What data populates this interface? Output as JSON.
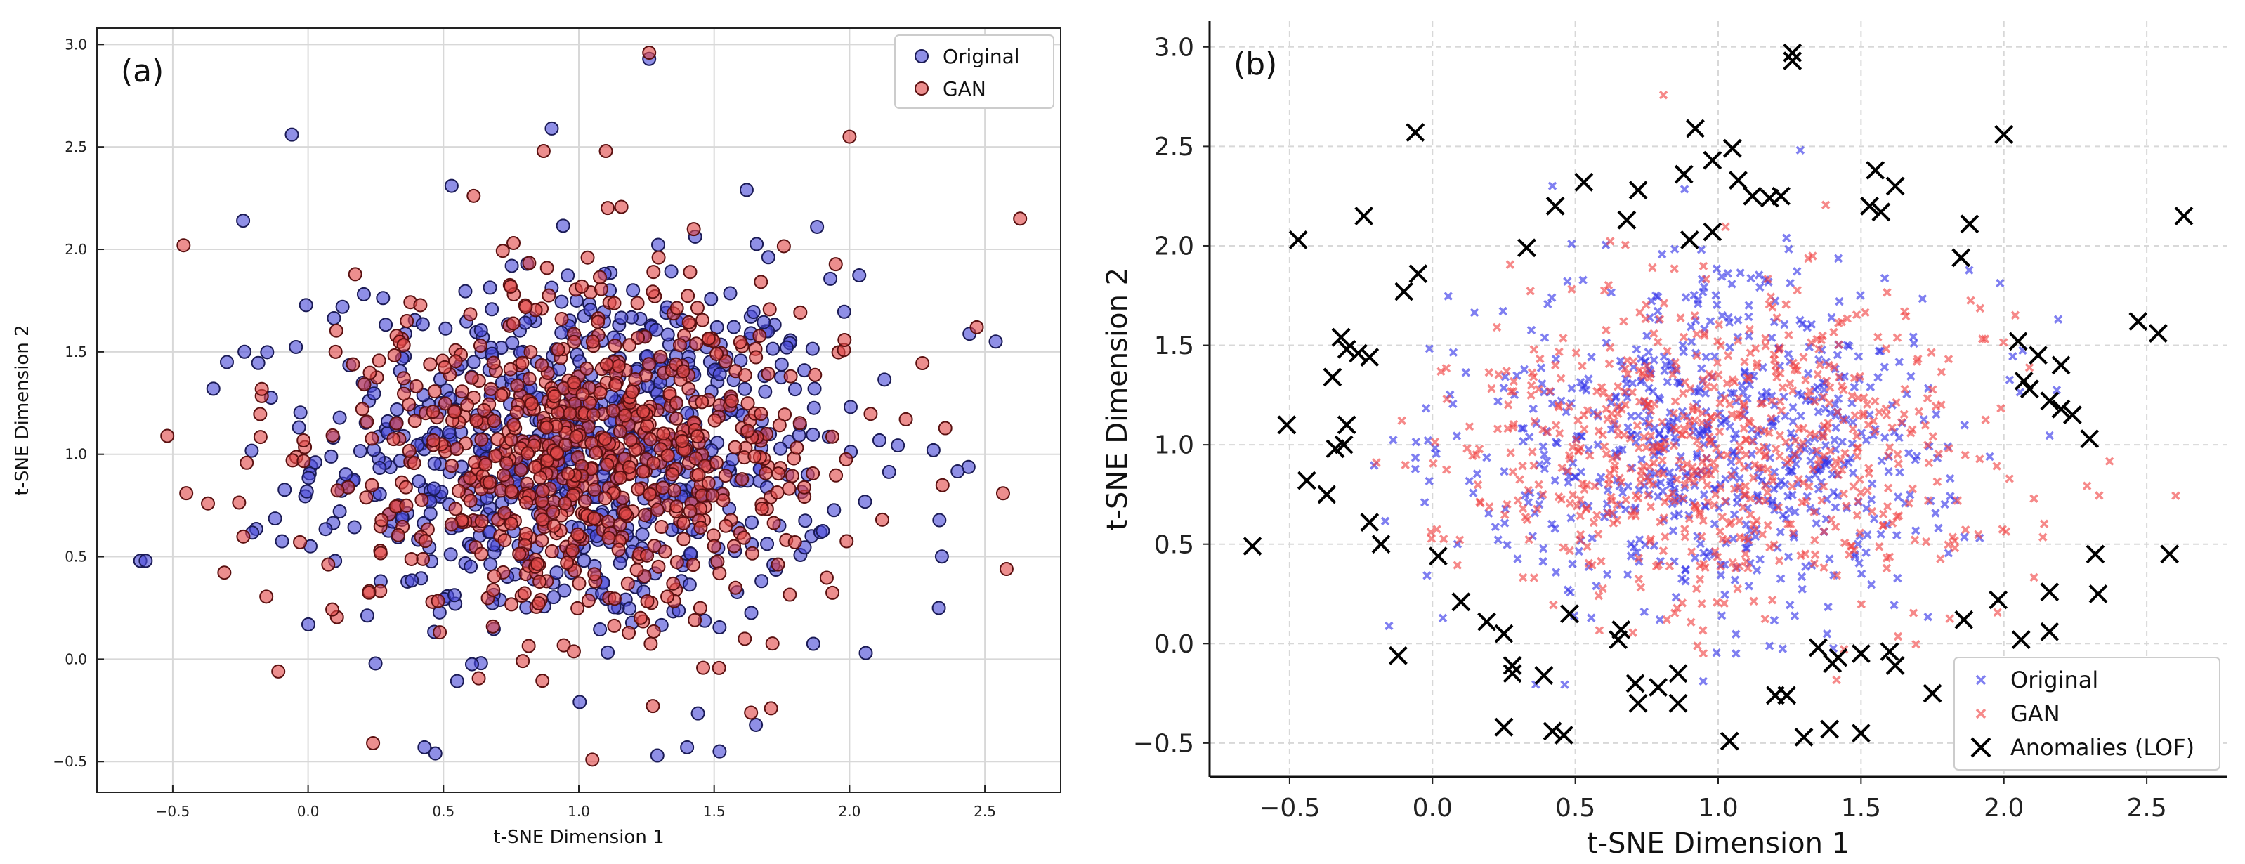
{
  "figure": {
    "panels": [
      "a",
      "b"
    ]
  },
  "chart_data": [
    {
      "id": "a",
      "type": "scatter",
      "panel_label": "(a)",
      "xlabel": "t-SNE Dimension 1",
      "ylabel": "t-SNE Dimension 2",
      "xlim": [
        -0.78,
        2.78
      ],
      "ylim": [
        -0.65,
        3.08
      ],
      "xticks": [
        -0.5,
        0.0,
        0.5,
        1.0,
        1.5,
        2.0,
        2.5
      ],
      "yticks": [
        -0.5,
        0.0,
        0.5,
        1.0,
        1.5,
        2.0,
        2.5,
        3.0
      ],
      "tick_labels_x": [
        "−0.5",
        "0.0",
        "0.5",
        "1.0",
        "1.5",
        "2.0",
        "2.5"
      ],
      "tick_labels_y": [
        "−0.5",
        "0.0",
        "0.5",
        "1.0",
        "1.5",
        "2.0",
        "2.5",
        "3.0"
      ],
      "grid": true,
      "legend": {
        "position": "top-right",
        "entries": [
          "Original",
          "GAN"
        ]
      },
      "series": [
        {
          "name": "Original",
          "marker": "circle",
          "color": "#4a4ad6",
          "edge": "#1a1a55",
          "points": [
            [
              -0.62,
              0.48
            ],
            [
              -0.06,
              2.56
            ],
            [
              0.9,
              2.59
            ],
            [
              1.26,
              2.93
            ],
            [
              -0.24,
              2.14
            ],
            [
              0.53,
              2.31
            ],
            [
              1.62,
              2.29
            ],
            [
              1.88,
              2.11
            ],
            [
              2.54,
              1.55
            ],
            [
              2.31,
              1.02
            ],
            [
              2.33,
              0.25
            ],
            [
              2.06,
              0.03
            ],
            [
              1.52,
              -0.45
            ],
            [
              1.29,
              -0.47
            ],
            [
              0.47,
              -0.46
            ],
            [
              0.43,
              -0.43
            ],
            [
              1.4,
              -0.43
            ],
            [
              -0.6,
              0.48
            ],
            [
              -0.35,
              1.32
            ],
            [
              -0.3,
              1.45
            ]
          ],
          "cluster": {
            "count": 720,
            "center": [
              1.0,
              1.0
            ],
            "spread": [
              0.48,
              0.44
            ]
          }
        },
        {
          "name": "GAN",
          "marker": "circle",
          "color": "#e04848",
          "edge": "#5a1010",
          "points": [
            [
              1.26,
              2.96
            ],
            [
              -0.46,
              2.02
            ],
            [
              2.0,
              2.55
            ],
            [
              2.63,
              2.15
            ],
            [
              2.47,
              1.62
            ],
            [
              2.58,
              0.44
            ],
            [
              1.71,
              -0.24
            ],
            [
              1.05,
              -0.49
            ],
            [
              0.24,
              -0.41
            ],
            [
              -0.11,
              -0.06
            ],
            [
              -0.52,
              1.09
            ],
            [
              -0.45,
              0.81
            ],
            [
              -0.37,
              0.76
            ],
            [
              1.1,
              2.48
            ],
            [
              0.87,
              2.48
            ]
          ],
          "cluster": {
            "count": 720,
            "center": [
              1.03,
              0.98
            ],
            "spread": [
              0.45,
              0.42
            ]
          }
        }
      ]
    },
    {
      "id": "b",
      "type": "scatter",
      "panel_label": "(b)",
      "xlabel": "t-SNE Dimension 1",
      "ylabel": "t-SNE Dimension 2",
      "xlim": [
        -0.78,
        2.78
      ],
      "ylim": [
        -0.67,
        3.13
      ],
      "xticks": [
        -0.5,
        0.0,
        0.5,
        1.0,
        1.5,
        2.0,
        2.5
      ],
      "yticks": [
        -0.5,
        0.0,
        0.5,
        1.0,
        1.5,
        2.0,
        2.5,
        3.0
      ],
      "tick_labels_x": [
        "−0.5",
        "0.0",
        "0.5",
        "1.0",
        "1.5",
        "2.0",
        "2.5"
      ],
      "tick_labels_y": [
        "−0.5",
        "0.0",
        "0.5",
        "1.0",
        "1.5",
        "2.0",
        "2.5",
        "3.0"
      ],
      "grid": true,
      "grid_style": "dashed",
      "legend": {
        "position": "bottom-right",
        "entries": [
          "Original",
          "GAN",
          "Anomalies (LOF)"
        ]
      },
      "series": [
        {
          "name": "Original",
          "marker": "x-small",
          "color": "#3030e8",
          "cluster": {
            "count": 700,
            "center": [
              1.0,
              1.0
            ],
            "spread": [
              0.45,
              0.42
            ]
          }
        },
        {
          "name": "GAN",
          "marker": "x-small",
          "color": "#f04040",
          "cluster": {
            "count": 700,
            "center": [
              1.0,
              0.98
            ],
            "spread": [
              0.45,
              0.42
            ]
          }
        },
        {
          "name": "Anomalies (LOF)",
          "marker": "x-large",
          "color": "#000000",
          "points": [
            [
              1.26,
              2.97
            ],
            [
              1.26,
              2.93
            ],
            [
              -0.06,
              2.57
            ],
            [
              0.92,
              2.59
            ],
            [
              2.0,
              2.56
            ],
            [
              1.05,
              2.49
            ],
            [
              0.98,
              2.43
            ],
            [
              0.53,
              2.32
            ],
            [
              1.55,
              2.38
            ],
            [
              1.62,
              2.3
            ],
            [
              -0.24,
              2.15
            ],
            [
              0.43,
              2.2
            ],
            [
              0.68,
              2.13
            ],
            [
              0.88,
              2.36
            ],
            [
              0.72,
              2.28
            ],
            [
              1.07,
              2.33
            ],
            [
              1.12,
              2.25
            ],
            [
              1.18,
              2.24
            ],
            [
              1.22,
              2.25
            ],
            [
              1.53,
              2.2
            ],
            [
              1.57,
              2.17
            ],
            [
              1.88,
              2.11
            ],
            [
              -0.47,
              2.03
            ],
            [
              0.9,
              2.03
            ],
            [
              0.98,
              2.07
            ],
            [
              1.85,
              1.94
            ],
            [
              0.33,
              1.99
            ],
            [
              -0.05,
              1.86
            ],
            [
              -0.1,
              1.77
            ],
            [
              2.63,
              2.15
            ],
            [
              2.47,
              1.62
            ],
            [
              2.54,
              1.56
            ],
            [
              -0.32,
              1.54
            ],
            [
              -0.3,
              1.48
            ],
            [
              -0.35,
              1.34
            ],
            [
              -0.26,
              1.46
            ],
            [
              -0.22,
              1.44
            ],
            [
              2.05,
              1.52
            ],
            [
              2.12,
              1.45
            ],
            [
              2.2,
              1.4
            ],
            [
              2.07,
              1.32
            ],
            [
              2.09,
              1.28
            ],
            [
              2.16,
              1.22
            ],
            [
              2.2,
              1.18
            ],
            [
              2.24,
              1.15
            ],
            [
              2.3,
              1.03
            ],
            [
              -0.51,
              1.1
            ],
            [
              -0.3,
              1.1
            ],
            [
              -0.34,
              0.98
            ],
            [
              -0.31,
              1.0
            ],
            [
              -0.44,
              0.82
            ],
            [
              -0.37,
              0.75
            ],
            [
              -0.22,
              0.61
            ],
            [
              -0.18,
              0.5
            ],
            [
              -0.63,
              0.49
            ],
            [
              0.02,
              0.44
            ],
            [
              2.32,
              0.45
            ],
            [
              2.58,
              0.45
            ],
            [
              0.1,
              0.21
            ],
            [
              0.19,
              0.11
            ],
            [
              0.25,
              0.05
            ],
            [
              0.48,
              0.15
            ],
            [
              0.66,
              0.07
            ],
            [
              0.65,
              0.02
            ],
            [
              1.35,
              -0.02
            ],
            [
              1.42,
              -0.07
            ],
            [
              1.4,
              -0.1
            ],
            [
              1.5,
              -0.05
            ],
            [
              1.6,
              -0.04
            ],
            [
              1.62,
              -0.11
            ],
            [
              1.86,
              0.12
            ],
            [
              1.98,
              0.22
            ],
            [
              2.06,
              0.02
            ],
            [
              2.16,
              0.06
            ],
            [
              2.16,
              0.26
            ],
            [
              2.33,
              0.25
            ],
            [
              -0.12,
              -0.06
            ],
            [
              0.28,
              -0.11
            ],
            [
              0.28,
              -0.15
            ],
            [
              0.39,
              -0.16
            ],
            [
              0.71,
              -0.2
            ],
            [
              0.79,
              -0.22
            ],
            [
              0.86,
              -0.15
            ],
            [
              0.86,
              -0.3
            ],
            [
              0.72,
              -0.3
            ],
            [
              1.2,
              -0.26
            ],
            [
              1.24,
              -0.26
            ],
            [
              1.75,
              -0.25
            ],
            [
              0.25,
              -0.42
            ],
            [
              0.42,
              -0.44
            ],
            [
              0.46,
              -0.46
            ],
            [
              1.04,
              -0.49
            ],
            [
              1.3,
              -0.47
            ],
            [
              1.39,
              -0.43
            ],
            [
              1.5,
              -0.45
            ]
          ]
        }
      ]
    }
  ]
}
